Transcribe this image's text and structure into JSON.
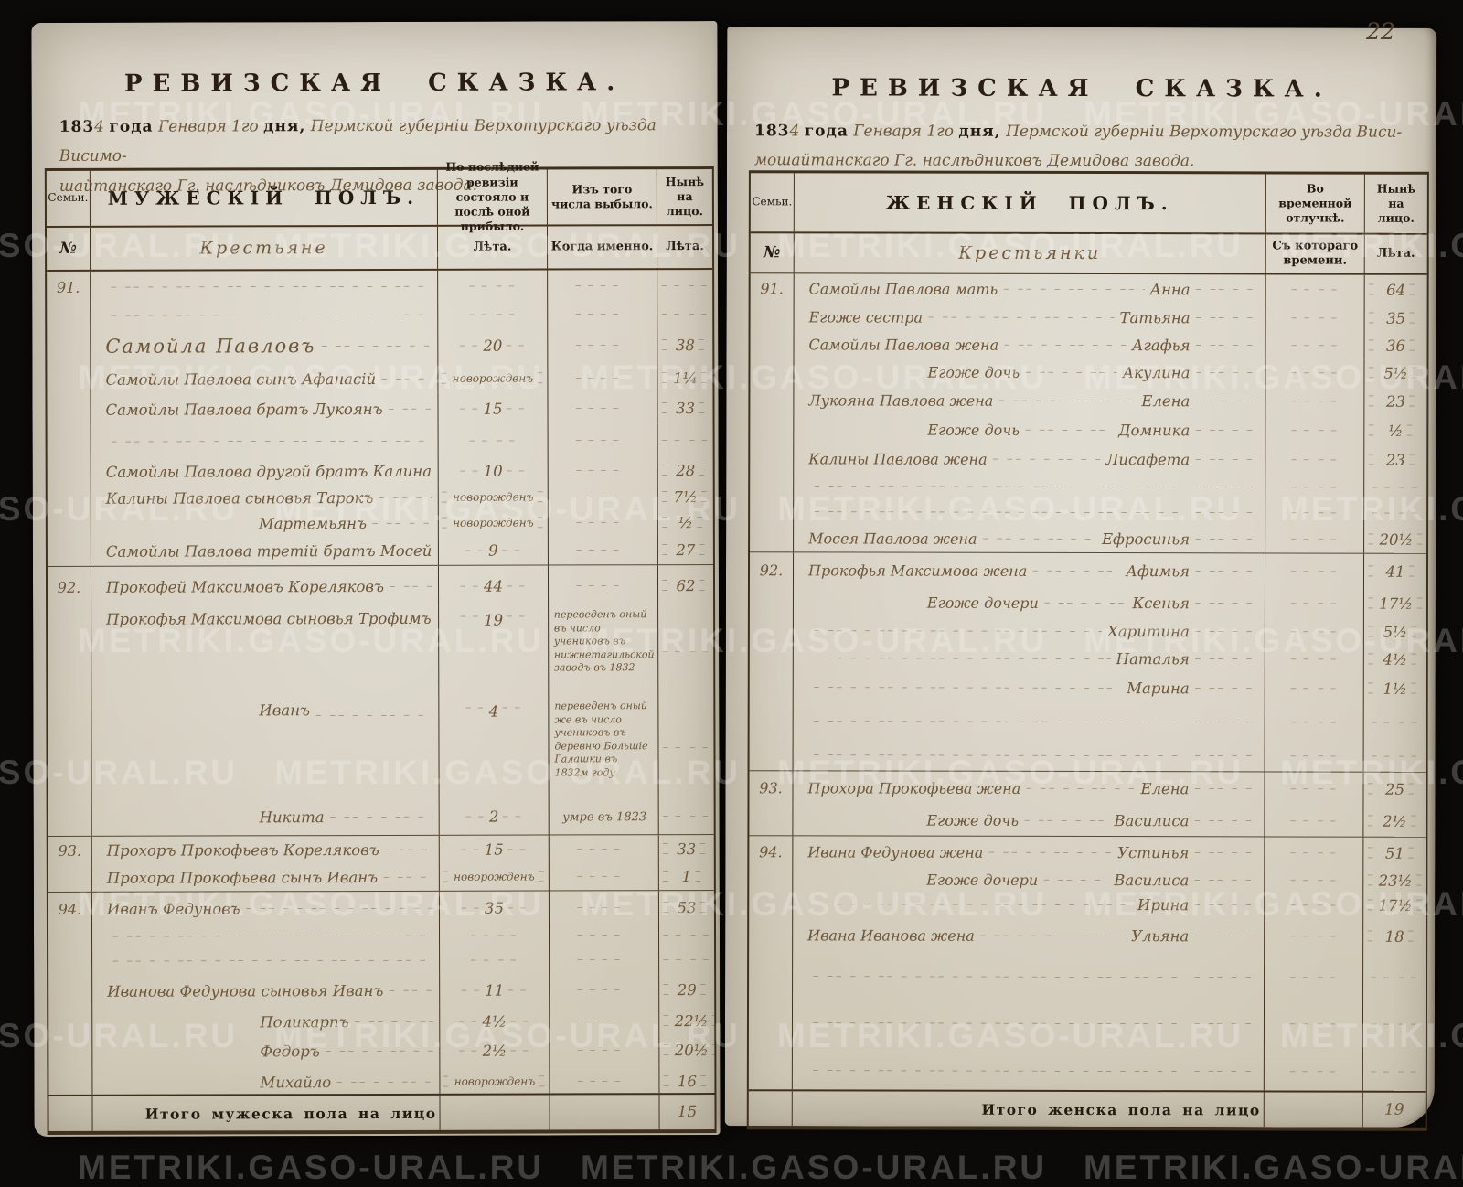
{
  "page_number": "22",
  "watermark_text": "METRIKI.GASO-URAL.RU",
  "left_page": {
    "title": "РЕВИЗСКАЯ СКАЗКА.",
    "date": {
      "p1": "183",
      "hw_digit": "4",
      "p2": "года",
      "hw_month": "Генваря 1го",
      "p3": "дня,",
      "hw_rest": "Пермской губерніи Верхотурскаго уѣзда Висимо-",
      "hw_line2": "шайтанскаго Гг. наслѣдниковъ Демидова завода."
    },
    "header": {
      "col_family": "Семьи.",
      "col_main": "МУЖЕСКІЙ ПОЛЪ.",
      "col_prev": "По послѣдней ревизіи состояло и послѣ оной прибыло.",
      "col_out": "Изъ того числа выбыло.",
      "col_now": "Нынѣ на лицо.",
      "sub_no": "№",
      "sub_main": "Крестьяне",
      "sub_prev": "Лѣта.",
      "sub_out": "Когда именно.",
      "sub_now": "Лѣта."
    },
    "rows": [
      {
        "fam": "91."
      },
      {},
      {
        "name": "Самойла Павловъ",
        "prev": "20",
        "now": "38"
      },
      {
        "name": "Самойлы Павлова сынъ Афанасій",
        "prev": "новорожденъ",
        "now": "1¼"
      },
      {
        "name": "Самойлы Павлова братъ Лукоянъ",
        "prev": "15",
        "now": "33"
      },
      {},
      {
        "name": "Самойлы Павлова другой братъ Калина",
        "prev": "10",
        "now": "28"
      },
      {
        "name": "Калины Павлова сыновья Тарокъ",
        "prev": "новорожденъ",
        "now": "7½"
      },
      {
        "name": "Мартемьянъ",
        "prev": "новорожденъ",
        "now": "½"
      },
      {
        "name": "Самойлы Павлова третій братъ Мосей",
        "prev": "9",
        "now": "27"
      },
      {
        "fam": "92.",
        "name": "Прокофей Максимовъ Кореляковъ",
        "prev": "44",
        "now": "62"
      },
      {
        "name": "Прокофья Максимова сыновья Трофимъ",
        "prev": "19",
        "out": "переведенъ оный въ число учениковъ въ нижнетагильской заводъ въ 1832"
      },
      {
        "name": "Иванъ",
        "prev": "4",
        "out": "переведенъ оный же въ число учениковъ въ деревню Большіе Галашки въ 1832м году"
      },
      {
        "name": "Никита",
        "prev": "2",
        "out": "умре въ 1823"
      },
      {
        "fam": "93.",
        "name": "Прохоръ Прокофьевъ Кореляковъ",
        "prev": "15",
        "now": "33"
      },
      {
        "name": "Прохора Прокофьева сынъ Иванъ",
        "prev": "новорожденъ",
        "now": "1"
      },
      {
        "fam": "94.",
        "name": "Иванъ Федуновъ",
        "prev": "35",
        "now": "53"
      },
      {},
      {},
      {
        "name": "Иванова Федунова сыновья Иванъ",
        "prev": "11",
        "now": "29"
      },
      {
        "name": "Поликарпъ",
        "prev": "4½",
        "now": "22½"
      },
      {
        "name": "Федоръ",
        "prev": "2½",
        "now": "20½"
      },
      {
        "name": "Михайло",
        "prev": "новорожденъ",
        "now": "16"
      }
    ],
    "total_label": "Итого мужеска пола на лицо",
    "total_value": "15"
  },
  "right_page": {
    "title": "РЕВИЗСКАЯ СКАЗКА.",
    "date": {
      "p1": "183",
      "hw_digit": "4",
      "p2": "года",
      "hw_month": "Генваря 1го",
      "p3": "дня,",
      "hw_rest": "Пермской губерніи Верхотурскаго уѣзда Виси-",
      "hw_line2": "мошайтанскаго Гг. наслѣдниковъ Демидова завода."
    },
    "header": {
      "col_family": "Семьи.",
      "col_main": "ЖЕНСКІЙ ПОЛЪ.",
      "col_away": "Во временной отлучкѣ.",
      "col_now": "Нынѣ на лицо.",
      "sub_no": "№",
      "sub_main": "Крестьянки",
      "sub_away": "Съ котораго времени.",
      "sub_now": "Лѣта."
    },
    "rows": [
      {
        "fam": "91.",
        "rel": "Самойлы Павлова мать",
        "given": "Анна",
        "now": "64"
      },
      {
        "rel": "Егоже сестра",
        "given": "Татьяна",
        "now": "35"
      },
      {
        "rel": "Самойлы Павлова жена",
        "given": "Агафья",
        "now": "36"
      },
      {
        "rel": "Егоже дочь",
        "given": "Акулина",
        "now": "5½"
      },
      {
        "rel": "Лукояна Павлова жена",
        "given": "Елена",
        "now": "23"
      },
      {
        "rel": "Егоже дочь",
        "given": "Домника",
        "now": "½"
      },
      {
        "rel": "Калины Павлова жена",
        "given": "Лисафета",
        "now": "23"
      },
      {},
      {},
      {
        "rel": "Мосея Павлова жена",
        "given": "Ефросинья",
        "now": "20½"
      },
      {
        "fam": "92.",
        "rel": "Прокофья Максимова жена",
        "given": "Афимья",
        "now": "41"
      },
      {
        "rel": "Егоже дочери",
        "given": "Ксенья",
        "now": "17½"
      },
      {
        "given": "Харитина",
        "now": "5½"
      },
      {
        "given": "Наталья",
        "now": "4½"
      },
      {
        "given": "Марина",
        "now": "1½"
      },
      {},
      {},
      {
        "fam": "93.",
        "rel": "Прохора Прокофьева жена",
        "given": "Елена",
        "now": "25"
      },
      {
        "rel": "Егоже дочь",
        "given": "Василиса",
        "now": "2½"
      },
      {
        "fam": "94.",
        "rel": "Ивана Федунова жена",
        "given": "Устинья",
        "now": "51"
      },
      {
        "rel": "Егоже дочери",
        "given": "Василиса",
        "now": "23½"
      },
      {
        "given": "Ирина",
        "now": "17½"
      },
      {
        "rel": "Ивана Иванова жена",
        "given": "Ульяна",
        "now": "18"
      },
      {},
      {},
      {}
    ],
    "total_label": "Итого женска пола на лицо",
    "total_value": "19"
  }
}
